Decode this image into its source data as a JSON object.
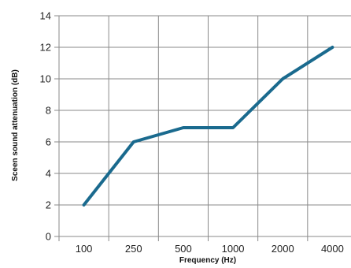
{
  "chart_data": {
    "type": "line",
    "title": "",
    "xlabel": "Frequency (Hz)",
    "ylabel": "Sceen sound attenuation (dB)",
    "categories": [
      "100",
      "250",
      "500",
      "1000",
      "2000",
      "4000"
    ],
    "series": [
      {
        "values": [
          2,
          6,
          6.9,
          6.9,
          10,
          12
        ],
        "color": "#1a6a8e"
      }
    ],
    "ylim": [
      0,
      14
    ],
    "yticks": [
      "0",
      "2",
      "4",
      "6",
      "8",
      "10",
      "12",
      "14"
    ],
    "grid": true,
    "legend": "none"
  }
}
